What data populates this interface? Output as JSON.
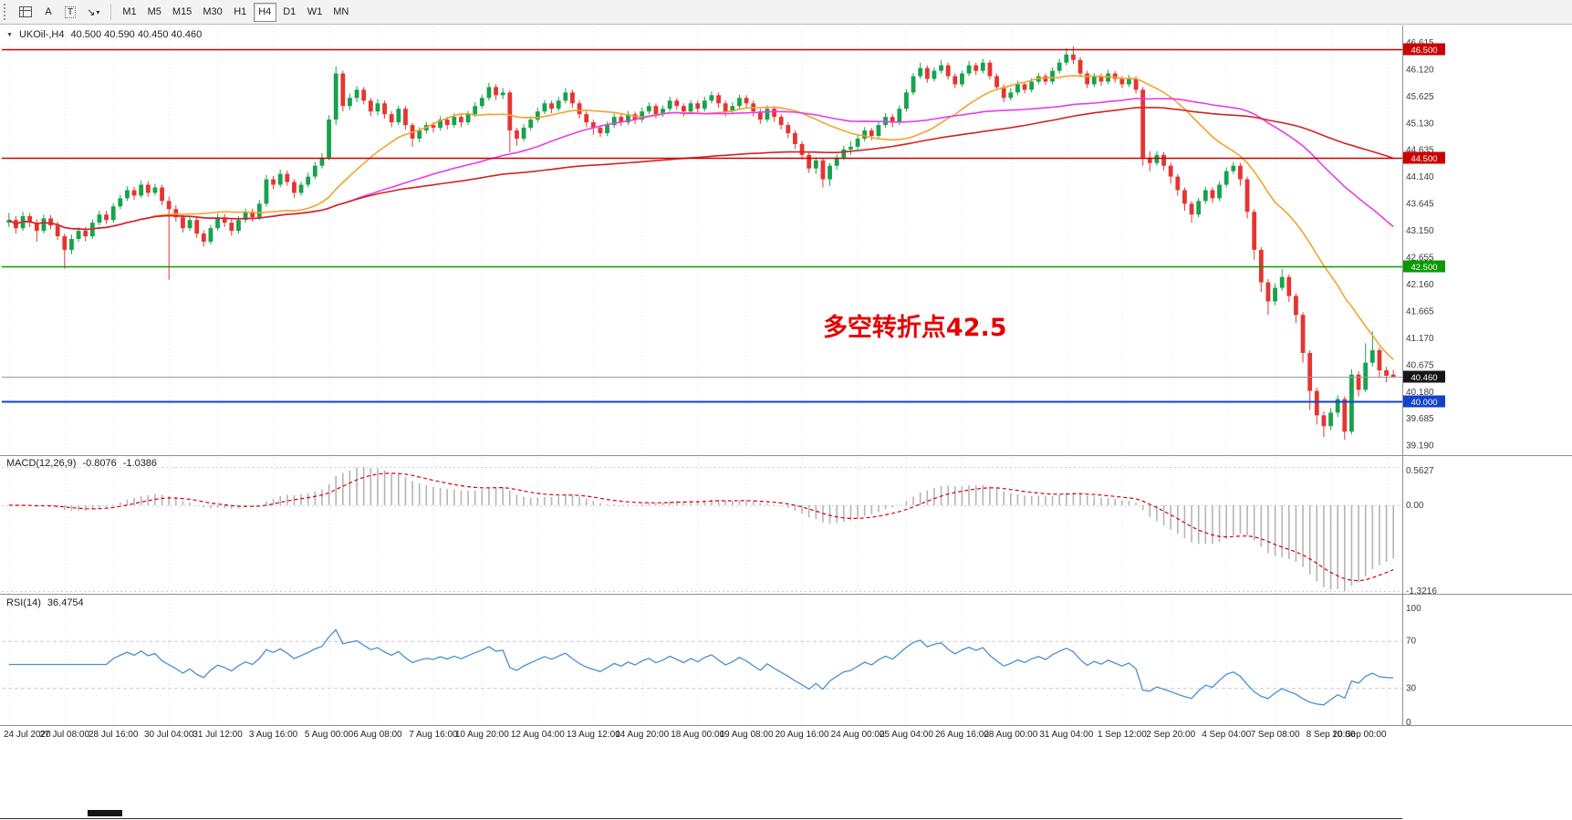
{
  "toolbar": {
    "tools": {
      "text_tool": "A",
      "label_tool": "T"
    },
    "icons": {
      "arrow": "↘",
      "caret": "▾"
    },
    "timeframes": [
      {
        "label": "M1"
      },
      {
        "label": "M5"
      },
      {
        "label": "M15"
      },
      {
        "label": "M30"
      },
      {
        "label": "H1"
      },
      {
        "label": "H4",
        "active": true
      },
      {
        "label": "D1"
      },
      {
        "label": "W1"
      },
      {
        "label": "MN"
      }
    ]
  },
  "chart": {
    "collapse_icon": "▼",
    "symbol_title": "UKOil-,H4",
    "ohlc_text": "40.500 40.590 40.450 40.460"
  },
  "chart_data": {
    "type": "candlestick",
    "symbol": "UKOil-",
    "timeframe": "H4",
    "title": "UKOil-,H4 40.500 40.590 40.450 40.460",
    "current_bar": {
      "open": "40.500",
      "high": "40.590",
      "low": "40.450",
      "close": "40.460"
    },
    "colors": {
      "up": "#17a24e",
      "down": "#e53532",
      "grid": "#e4e4e4"
    },
    "y_axis": {
      "min": 39.05,
      "max": 46.9,
      "labels": [
        46.615,
        46.12,
        45.625,
        45.13,
        44.635,
        44.14,
        43.645,
        43.15,
        42.655,
        42.16,
        41.665,
        41.17,
        40.675,
        40.18,
        39.685,
        39.19
      ]
    },
    "x_axis": {
      "labels": [
        "24 Jul 2020",
        "27 Jul 08:00",
        "28 Jul 16:00",
        "30 Jul 04:00",
        "31 Jul 12:00",
        "3 Aug 16:00",
        "5 Aug 00:00",
        "6 Aug 08:00",
        "7 Aug 16:00",
        "10 Aug 20:00",
        "12 Aug 04:00",
        "13 Aug 12:00",
        "14 Aug 20:00",
        "18 Aug 00:00",
        "19 Aug 08:00",
        "20 Aug 16:00",
        "24 Aug 00:00",
        "25 Aug 04:00",
        "26 Aug 16:00",
        "28 Aug 00:00",
        "31 Aug 04:00",
        "1 Sep 12:00",
        "2 Sep 20:00",
        "4 Sep 04:00",
        "7 Sep 08:00",
        "8 Sep 20:00",
        "10 Sep 00:00"
      ],
      "tick_indices": [
        0,
        8,
        15,
        23,
        30,
        38,
        46,
        53,
        61,
        68,
        76,
        84,
        91,
        99,
        106,
        114,
        122,
        129,
        137,
        144,
        152,
        160,
        167,
        175,
        182,
        190,
        198
      ]
    },
    "hlines": [
      {
        "price": 46.5,
        "label": "46.500",
        "color": "#cc0000",
        "width": 1.4
      },
      {
        "price": 44.5,
        "label": "44.500",
        "color": "#cc0000",
        "width": 1.6
      },
      {
        "price": 42.5,
        "label": "42.500",
        "color": "#0a9a00",
        "width": 1.6
      },
      {
        "price": 40.0,
        "label": "40.000",
        "color": "#1241cc",
        "width": 2.0
      }
    ],
    "bid": {
      "price": 40.46,
      "label": "40.460",
      "line_color": "#9a9a9a",
      "tag_color": "#161616"
    },
    "annotation": {
      "text": "多空转折点42.5",
      "color": "#e60000",
      "bar_index": 117,
      "price": 41.45
    },
    "moving_averages": [
      {
        "name": "ma-fast-orange",
        "period": 20,
        "color": "#f2a42c"
      },
      {
        "name": "ma-mid-magenta",
        "period": 50,
        "color": "#e93ce9"
      },
      {
        "name": "ma-slow-red",
        "period": 120,
        "color": "#d42222"
      }
    ],
    "indicators": {
      "macd": {
        "label": "MACD(12,26,9)",
        "value_main": "-0.8076",
        "value_signal": "-1.0386",
        "fast": 12,
        "slow": 26,
        "signal": 9,
        "scale_labels": [
          "0.5627",
          "0.00",
          "-1.3216"
        ],
        "histogram_color": "#b5b5b5",
        "signal_color": "#d40000"
      },
      "rsi": {
        "label": "RSI(14)",
        "value": "36.4754",
        "period": 14,
        "scale_labels": [
          "100",
          "70",
          "30",
          "0"
        ],
        "levels": [
          70,
          30
        ],
        "line_color": "#4a8fd2"
      }
    },
    "candles": [
      [
        43.3,
        43.48,
        43.22,
        43.35
      ],
      [
        43.35,
        43.42,
        43.1,
        43.2
      ],
      [
        43.2,
        43.5,
        43.15,
        43.42
      ],
      [
        43.42,
        43.48,
        43.22,
        43.3
      ],
      [
        43.3,
        43.36,
        42.95,
        43.15
      ],
      [
        43.15,
        43.45,
        43.1,
        43.38
      ],
      [
        43.38,
        43.44,
        43.18,
        43.25
      ],
      [
        43.25,
        43.32,
        42.98,
        43.05
      ],
      [
        43.05,
        43.1,
        42.45,
        42.8
      ],
      [
        42.8,
        43.08,
        42.72,
        43.0
      ],
      [
        43.0,
        43.22,
        42.95,
        43.15
      ],
      [
        43.15,
        43.22,
        42.96,
        43.05
      ],
      [
        43.05,
        43.36,
        43.0,
        43.3
      ],
      [
        43.3,
        43.52,
        43.25,
        43.45
      ],
      [
        43.45,
        43.52,
        43.28,
        43.35
      ],
      [
        43.35,
        43.66,
        43.3,
        43.6
      ],
      [
        43.6,
        43.82,
        43.55,
        43.75
      ],
      [
        43.75,
        43.97,
        43.7,
        43.9
      ],
      [
        43.9,
        43.96,
        43.72,
        43.8
      ],
      [
        43.8,
        44.08,
        43.76,
        44.0
      ],
      [
        44.0,
        44.06,
        43.78,
        43.85
      ],
      [
        43.85,
        44.02,
        43.8,
        43.95
      ],
      [
        43.95,
        44.0,
        43.62,
        43.7
      ],
      [
        43.7,
        43.78,
        42.25,
        43.55
      ],
      [
        43.55,
        43.62,
        43.32,
        43.4
      ],
      [
        43.4,
        43.46,
        43.12,
        43.2
      ],
      [
        43.2,
        43.42,
        43.15,
        43.35
      ],
      [
        43.35,
        43.4,
        43.02,
        43.1
      ],
      [
        43.1,
        43.16,
        42.86,
        42.95
      ],
      [
        42.95,
        43.26,
        42.9,
        43.2
      ],
      [
        43.2,
        43.46,
        43.15,
        43.4
      ],
      [
        43.4,
        43.46,
        43.22,
        43.3
      ],
      [
        43.3,
        43.36,
        43.06,
        43.15
      ],
      [
        43.15,
        43.42,
        43.1,
        43.35
      ],
      [
        43.35,
        43.56,
        43.3,
        43.5
      ],
      [
        43.5,
        43.56,
        43.32,
        43.4
      ],
      [
        43.4,
        43.72,
        43.35,
        43.65
      ],
      [
        43.65,
        44.18,
        43.6,
        44.1
      ],
      [
        44.1,
        44.16,
        43.92,
        44.0
      ],
      [
        44.0,
        44.28,
        43.95,
        44.2
      ],
      [
        44.2,
        44.26,
        43.98,
        44.05
      ],
      [
        44.05,
        44.1,
        43.76,
        43.85
      ],
      [
        43.85,
        44.06,
        43.8,
        44.0
      ],
      [
        44.0,
        44.22,
        43.95,
        44.15
      ],
      [
        44.15,
        44.42,
        44.1,
        44.35
      ],
      [
        44.35,
        44.58,
        44.3,
        44.5
      ],
      [
        44.5,
        45.28,
        44.45,
        45.2
      ],
      [
        45.2,
        46.18,
        45.1,
        46.05
      ],
      [
        46.05,
        46.1,
        45.35,
        45.45
      ],
      [
        45.45,
        45.68,
        45.38,
        45.6
      ],
      [
        45.6,
        45.82,
        45.52,
        45.75
      ],
      [
        45.75,
        45.8,
        45.48,
        45.55
      ],
      [
        45.55,
        45.6,
        45.26,
        45.35
      ],
      [
        45.35,
        45.58,
        45.28,
        45.5
      ],
      [
        45.5,
        45.55,
        45.22,
        45.3
      ],
      [
        45.3,
        45.36,
        45.06,
        45.15
      ],
      [
        45.15,
        45.46,
        45.1,
        45.4
      ],
      [
        45.4,
        45.45,
        45.02,
        45.1
      ],
      [
        45.1,
        45.14,
        44.7,
        44.85
      ],
      [
        44.85,
        45.06,
        44.78,
        45.0
      ],
      [
        45.0,
        45.16,
        44.94,
        45.1
      ],
      [
        45.1,
        45.15,
        44.96,
        45.05
      ],
      [
        45.05,
        45.26,
        45.0,
        45.2
      ],
      [
        45.2,
        45.25,
        45.02,
        45.1
      ],
      [
        45.1,
        45.32,
        45.05,
        45.25
      ],
      [
        45.25,
        45.3,
        45.06,
        45.15
      ],
      [
        45.15,
        45.36,
        45.1,
        45.3
      ],
      [
        45.3,
        45.52,
        45.25,
        45.45
      ],
      [
        45.45,
        45.66,
        45.4,
        45.6
      ],
      [
        45.6,
        45.88,
        45.55,
        45.8
      ],
      [
        45.8,
        45.85,
        45.56,
        45.65
      ],
      [
        45.65,
        45.78,
        45.58,
        45.7
      ],
      [
        45.7,
        45.74,
        44.6,
        45.0
      ],
      [
        45.0,
        45.05,
        44.72,
        44.85
      ],
      [
        44.85,
        45.12,
        44.8,
        45.05
      ],
      [
        45.05,
        45.26,
        45.0,
        45.2
      ],
      [
        45.2,
        45.42,
        45.15,
        45.35
      ],
      [
        45.35,
        45.56,
        45.3,
        45.5
      ],
      [
        45.5,
        45.55,
        45.32,
        45.4
      ],
      [
        45.4,
        45.62,
        45.35,
        45.55
      ],
      [
        45.55,
        45.78,
        45.5,
        45.7
      ],
      [
        45.7,
        45.75,
        45.42,
        45.5
      ],
      [
        45.5,
        45.55,
        45.22,
        45.3
      ],
      [
        45.3,
        45.35,
        45.06,
        45.15
      ],
      [
        45.15,
        45.2,
        44.92,
        45.05
      ],
      [
        45.05,
        45.1,
        44.88,
        44.95
      ],
      [
        44.95,
        45.16,
        44.9,
        45.1
      ],
      [
        45.1,
        45.32,
        45.05,
        45.25
      ],
      [
        45.25,
        45.3,
        45.08,
        45.15
      ],
      [
        45.15,
        45.36,
        45.1,
        45.3
      ],
      [
        45.3,
        45.35,
        45.12,
        45.2
      ],
      [
        45.2,
        45.42,
        45.15,
        45.35
      ],
      [
        45.35,
        45.52,
        45.3,
        45.45
      ],
      [
        45.45,
        45.5,
        45.22,
        45.3
      ],
      [
        45.3,
        45.46,
        45.25,
        45.4
      ],
      [
        45.4,
        45.62,
        45.35,
        45.55
      ],
      [
        45.55,
        45.6,
        45.38,
        45.45
      ],
      [
        45.45,
        45.5,
        45.26,
        45.35
      ],
      [
        45.35,
        45.56,
        45.3,
        45.5
      ],
      [
        45.5,
        45.55,
        45.32,
        45.4
      ],
      [
        45.4,
        45.62,
        45.35,
        45.55
      ],
      [
        45.55,
        45.72,
        45.5,
        45.65
      ],
      [
        45.65,
        45.7,
        45.42,
        45.5
      ],
      [
        45.5,
        45.55,
        45.26,
        45.35
      ],
      [
        45.35,
        45.52,
        45.3,
        45.45
      ],
      [
        45.45,
        45.66,
        45.4,
        45.6
      ],
      [
        45.6,
        45.65,
        45.42,
        45.5
      ],
      [
        45.5,
        45.55,
        45.26,
        45.35
      ],
      [
        45.35,
        45.4,
        45.12,
        45.2
      ],
      [
        45.2,
        45.46,
        45.15,
        45.4
      ],
      [
        45.4,
        45.45,
        45.16,
        45.25
      ],
      [
        45.25,
        45.3,
        45.02,
        45.1
      ],
      [
        45.1,
        45.15,
        44.86,
        44.95
      ],
      [
        44.95,
        45.0,
        44.66,
        44.75
      ],
      [
        44.75,
        44.8,
        44.46,
        44.55
      ],
      [
        44.55,
        44.6,
        44.22,
        44.3
      ],
      [
        44.3,
        44.5,
        44.2,
        44.45
      ],
      [
        44.45,
        44.5,
        43.95,
        44.1
      ],
      [
        44.1,
        44.4,
        43.98,
        44.35
      ],
      [
        44.35,
        44.56,
        44.28,
        44.5
      ],
      [
        44.5,
        44.72,
        44.45,
        44.65
      ],
      [
        44.65,
        44.8,
        44.55,
        44.7
      ],
      [
        44.7,
        44.92,
        44.65,
        44.85
      ],
      [
        44.85,
        45.06,
        44.8,
        45.0
      ],
      [
        45.0,
        45.05,
        44.82,
        44.9
      ],
      [
        44.9,
        45.16,
        44.85,
        45.1
      ],
      [
        45.1,
        45.32,
        45.05,
        45.25
      ],
      [
        45.25,
        45.3,
        45.06,
        45.15
      ],
      [
        45.15,
        45.46,
        45.1,
        45.4
      ],
      [
        45.4,
        45.76,
        45.35,
        45.7
      ],
      [
        45.7,
        46.06,
        45.65,
        46.0
      ],
      [
        46.0,
        46.25,
        45.95,
        46.15
      ],
      [
        46.15,
        46.2,
        45.88,
        45.95
      ],
      [
        45.95,
        46.16,
        45.9,
        46.1
      ],
      [
        46.1,
        46.3,
        46.05,
        46.2
      ],
      [
        46.2,
        46.25,
        45.94,
        46.0
      ],
      [
        46.0,
        46.05,
        45.78,
        45.85
      ],
      [
        45.85,
        46.1,
        45.8,
        46.05
      ],
      [
        46.05,
        46.28,
        46.0,
        46.2
      ],
      [
        46.2,
        46.25,
        46.02,
        46.1
      ],
      [
        46.1,
        46.32,
        46.05,
        46.25
      ],
      [
        46.25,
        46.3,
        45.94,
        46.0
      ],
      [
        46.0,
        46.05,
        45.74,
        45.8
      ],
      [
        45.8,
        45.85,
        45.52,
        45.6
      ],
      [
        45.6,
        45.78,
        45.55,
        45.7
      ],
      [
        45.7,
        45.92,
        45.65,
        45.85
      ],
      [
        45.85,
        45.9,
        45.68,
        45.75
      ],
      [
        45.75,
        45.96,
        45.7,
        45.9
      ],
      [
        45.9,
        46.06,
        45.85,
        46.0
      ],
      [
        46.0,
        46.05,
        45.84,
        45.9
      ],
      [
        45.9,
        46.16,
        45.85,
        46.1
      ],
      [
        46.1,
        46.32,
        46.05,
        46.25
      ],
      [
        46.25,
        46.52,
        46.2,
        46.4
      ],
      [
        46.4,
        46.55,
        46.22,
        46.3
      ],
      [
        46.3,
        46.35,
        45.98,
        46.05
      ],
      [
        46.05,
        46.1,
        45.78,
        45.85
      ],
      [
        45.85,
        46.06,
        45.8,
        46.0
      ],
      [
        46.0,
        46.05,
        45.82,
        45.9
      ],
      [
        45.9,
        46.12,
        45.85,
        46.05
      ],
      [
        46.05,
        46.1,
        45.88,
        45.95
      ],
      [
        45.95,
        46.0,
        45.78,
        45.85
      ],
      [
        45.85,
        46.02,
        45.8,
        45.95
      ],
      [
        45.95,
        46.0,
        45.68,
        45.75
      ],
      [
        45.75,
        45.8,
        44.35,
        44.5
      ],
      [
        44.5,
        44.62,
        44.25,
        44.4
      ],
      [
        44.4,
        44.62,
        44.35,
        44.55
      ],
      [
        44.55,
        44.6,
        44.26,
        44.35
      ],
      [
        44.35,
        44.4,
        44.02,
        44.15
      ],
      [
        44.15,
        44.2,
        43.8,
        43.9
      ],
      [
        43.9,
        43.95,
        43.52,
        43.65
      ],
      [
        43.65,
        43.7,
        43.3,
        43.45
      ],
      [
        43.45,
        43.76,
        43.4,
        43.7
      ],
      [
        43.7,
        43.96,
        43.65,
        43.9
      ],
      [
        43.9,
        43.95,
        43.66,
        43.75
      ],
      [
        43.75,
        44.06,
        43.7,
        44.0
      ],
      [
        44.0,
        44.32,
        43.95,
        44.25
      ],
      [
        44.25,
        44.42,
        44.2,
        44.35
      ],
      [
        44.35,
        44.4,
        43.98,
        44.1
      ],
      [
        44.1,
        44.15,
        43.38,
        43.5
      ],
      [
        43.5,
        43.55,
        42.62,
        42.8
      ],
      [
        42.8,
        42.85,
        42.02,
        42.2
      ],
      [
        42.2,
        42.26,
        41.6,
        41.85
      ],
      [
        41.85,
        42.18,
        41.78,
        42.1
      ],
      [
        42.1,
        42.45,
        42.05,
        42.3
      ],
      [
        42.3,
        42.35,
        41.84,
        41.95
      ],
      [
        41.95,
        42.0,
        41.45,
        41.6
      ],
      [
        41.6,
        41.65,
        40.72,
        40.9
      ],
      [
        40.9,
        40.95,
        39.85,
        40.2
      ],
      [
        40.2,
        40.26,
        39.58,
        39.75
      ],
      [
        39.75,
        39.82,
        39.35,
        39.55
      ],
      [
        39.55,
        39.88,
        39.48,
        39.8
      ],
      [
        39.8,
        40.12,
        39.72,
        40.05
      ],
      [
        40.05,
        40.1,
        39.3,
        39.45
      ],
      [
        39.45,
        40.6,
        39.4,
        40.5
      ],
      [
        40.5,
        40.56,
        40.1,
        40.22
      ],
      [
        40.22,
        41.08,
        40.18,
        40.72
      ],
      [
        40.72,
        41.3,
        40.65,
        40.95
      ],
      [
        40.95,
        41.0,
        40.46,
        40.58
      ],
      [
        40.58,
        40.64,
        40.36,
        40.48
      ],
      [
        40.5,
        40.59,
        40.45,
        40.46
      ]
    ]
  }
}
